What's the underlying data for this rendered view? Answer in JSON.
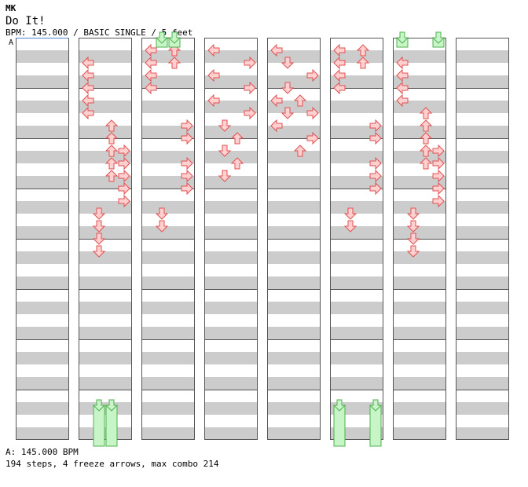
{
  "header": {
    "artist": "MK",
    "title": "Do It!",
    "info": "BPM: 145.000 / BASIC SINGLE / 5 feet"
  },
  "speed_label": "A",
  "footer": {
    "speed": "A: 145.000 BPM",
    "stats": "194 steps, 4 freeze arrows, max combo 214"
  },
  "colors": {
    "arrow_fill": "#ffd0d0",
    "arrow_stroke": "#e05050",
    "freeze_fill": "#c8f5c8",
    "freeze_stroke": "#50b050",
    "stripe": "#cccccc"
  },
  "columns": [
    {
      "arrows": [
        [
          3,
          9,
          "D"
        ],
        [
          3,
          21,
          "D"
        ],
        [
          4,
          10,
          "R"
        ],
        [
          4,
          19,
          "R"
        ],
        [
          4,
          26,
          "R"
        ],
        [
          5,
          3,
          "L"
        ],
        [
          5,
          23,
          "L"
        ],
        [
          6,
          6,
          "U"
        ],
        [
          7,
          3,
          "L"
        ],
        [
          7,
          11,
          "U"
        ],
        [
          7,
          24,
          "U"
        ],
        [
          8,
          1,
          "L"
        ],
        [
          8,
          11,
          "U"
        ]
      ],
      "freezes": []
    },
    {
      "arrows": [
        [
          0,
          3,
          "L"
        ],
        [
          0,
          5,
          "L"
        ],
        [
          0,
          7,
          "L"
        ],
        [
          0,
          9,
          "L"
        ],
        [
          1,
          3,
          "L"
        ],
        [
          1,
          5,
          "L"
        ],
        [
          1,
          7,
          "L"
        ],
        [
          1,
          9,
          "L"
        ],
        [
          1,
          11,
          "L"
        ],
        [
          2,
          13,
          "L"
        ],
        [
          2,
          17,
          "L"
        ],
        [
          2,
          19,
          "L"
        ],
        [
          2,
          21,
          "L"
        ],
        [
          2,
          25,
          "L"
        ],
        [
          0,
          17,
          "R"
        ],
        [
          0,
          19,
          "R"
        ],
        [
          0,
          21,
          "R"
        ],
        [
          0,
          23,
          "R"
        ],
        [
          0,
          25,
          "R"
        ],
        [
          1,
          17,
          "R"
        ],
        [
          1,
          19,
          "R"
        ],
        [
          1,
          21,
          "R"
        ],
        [
          1,
          23,
          "R"
        ],
        [
          1,
          25,
          "R"
        ],
        [
          2,
          1,
          "R"
        ],
        [
          2,
          3,
          "R"
        ],
        [
          2,
          5,
          "R"
        ],
        [
          0,
          27,
          "D"
        ],
        [
          0,
          29,
          "D"
        ],
        [
          0,
          31,
          "D"
        ],
        [
          0,
          33,
          "D"
        ],
        [
          1,
          27,
          "D"
        ],
        [
          1,
          29,
          "D"
        ],
        [
          1,
          31,
          "D"
        ],
        [
          1,
          33,
          "D"
        ],
        [
          2,
          11,
          "D"
        ],
        [
          2,
          13,
          "D"
        ],
        [
          2,
          15,
          "D"
        ],
        [
          2,
          17,
          "D"
        ],
        [
          2,
          19,
          "D"
        ],
        [
          0,
          11,
          "U"
        ],
        [
          0,
          13,
          "U"
        ],
        [
          0,
          15,
          "U"
        ],
        [
          0,
          17,
          "U"
        ],
        [
          0,
          19,
          "U"
        ],
        [
          1,
          13,
          "U"
        ],
        [
          1,
          15,
          "U"
        ],
        [
          1,
          17,
          "U"
        ],
        [
          1,
          19,
          "U"
        ],
        [
          1,
          21,
          "U"
        ],
        [
          2,
          25,
          "U"
        ],
        [
          2,
          27,
          "U"
        ],
        [
          2,
          29,
          "U"
        ],
        [
          2,
          31,
          "U"
        ]
      ],
      "freezes": [
        [
          -1,
          0,
          -1,
          0
        ]
      ]
    },
    {
      "arrows": [
        [
          0,
          3,
          "L"
        ],
        [
          0,
          5,
          "L"
        ],
        [
          0,
          7,
          "L"
        ],
        [
          0,
          9,
          "L"
        ],
        [
          1,
          1,
          "L"
        ],
        [
          1,
          3,
          "L"
        ],
        [
          1,
          5,
          "L"
        ],
        [
          1,
          7,
          "L"
        ],
        [
          1,
          9,
          "L"
        ],
        [
          2,
          1,
          "L"
        ],
        [
          2,
          3,
          "L"
        ],
        [
          2,
          5,
          "L"
        ],
        [
          2,
          7,
          "L"
        ],
        [
          0,
          19,
          "R"
        ],
        [
          0,
          23,
          "R"
        ],
        [
          1,
          21,
          "R"
        ],
        [
          1,
          23,
          "R"
        ],
        [
          1,
          25,
          "R"
        ],
        [
          1,
          27,
          "R"
        ],
        [
          2,
          13,
          "R"
        ],
        [
          2,
          15,
          "R"
        ],
        [
          2,
          19,
          "R"
        ],
        [
          2,
          21,
          "R"
        ],
        [
          2,
          23,
          "R"
        ],
        [
          0,
          27,
          "D"
        ],
        [
          0,
          29,
          "D"
        ],
        [
          0,
          31,
          "D"
        ],
        [
          0,
          33,
          "D"
        ],
        [
          1,
          29,
          "D"
        ],
        [
          1,
          31,
          "D"
        ],
        [
          2,
          27,
          "D"
        ],
        [
          2,
          29,
          "D"
        ],
        [
          0,
          13,
          "U"
        ],
        [
          0,
          15,
          "U"
        ],
        [
          0,
          17,
          "U"
        ],
        [
          1,
          15,
          "U"
        ],
        [
          1,
          17,
          "U"
        ],
        [
          1,
          19,
          "U"
        ],
        [
          2,
          1,
          "U"
        ],
        [
          2,
          3,
          "U"
        ]
      ],
      "freezes": []
    },
    {
      "arrows": [
        [
          0,
          1,
          "L"
        ],
        [
          0,
          5,
          "L"
        ],
        [
          0,
          9,
          "L"
        ],
        [
          1,
          1,
          "L"
        ],
        [
          1,
          9,
          "L"
        ],
        [
          1,
          13,
          "L"
        ],
        [
          2,
          1,
          "L"
        ],
        [
          2,
          9,
          "L"
        ],
        [
          0,
          3,
          "R"
        ],
        [
          0,
          7,
          "R"
        ],
        [
          0,
          11,
          "R"
        ],
        [
          1,
          5,
          "R"
        ],
        [
          1,
          11,
          "R"
        ],
        [
          1,
          15,
          "R"
        ],
        [
          2,
          5,
          "R"
        ],
        [
          2,
          11,
          "R"
        ],
        [
          0,
          13,
          "D"
        ],
        [
          0,
          17,
          "D"
        ],
        [
          0,
          21,
          "D"
        ],
        [
          1,
          3,
          "D"
        ],
        [
          1,
          7,
          "D"
        ],
        [
          1,
          11,
          "D"
        ],
        [
          2,
          3,
          "D"
        ],
        [
          2,
          7,
          "D"
        ],
        [
          2,
          13,
          "D"
        ],
        [
          2,
          15,
          "D"
        ],
        [
          0,
          15,
          "U"
        ],
        [
          0,
          19,
          "U"
        ],
        [
          1,
          9,
          "U"
        ],
        [
          1,
          17,
          "U"
        ],
        [
          2,
          9,
          "U"
        ],
        [
          2,
          13,
          "U"
        ]
      ],
      "freezes": []
    }
  ]
}
